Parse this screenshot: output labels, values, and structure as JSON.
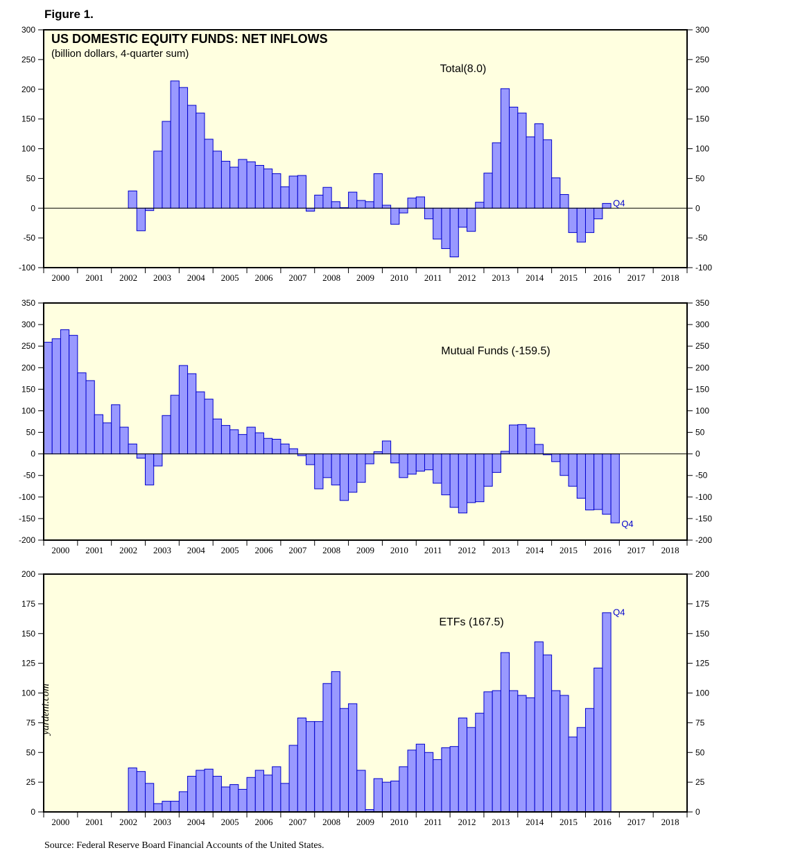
{
  "header": {
    "figure_label": "Figure 1.",
    "watermark": "yardeni.com",
    "source": "Source: Federal Reserve Board Financial Accounts of the United States."
  },
  "colors": {
    "bar_fill": "#9999ff",
    "bar_stroke": "#0000cc",
    "plot_bg": "#ffffe0",
    "label_blue": "#0000cc"
  },
  "chart_data": [
    {
      "type": "bar",
      "title": "US DOMESTIC EQUITY FUNDS: NET INFLOWS",
      "subtitle": "(billion dollars, 4-quarter sum)",
      "series_label": "Total(8.0)",
      "end_label": "Q4",
      "ylim": [
        -100,
        300
      ],
      "yticks": [
        -100,
        -50,
        0,
        50,
        100,
        150,
        200,
        250,
        300
      ],
      "xlim": [
        2000,
        2019
      ],
      "years": [
        "2000",
        "2001",
        "2002",
        "2003",
        "2004",
        "2005",
        "2006",
        "2007",
        "2008",
        "2009",
        "2010",
        "2011",
        "2012",
        "2013",
        "2014",
        "2015",
        "2016",
        "2017",
        "2018"
      ],
      "first_quarter": [
        2002,
        3
      ],
      "values": [
        29,
        -38,
        -4,
        96,
        146,
        214,
        203,
        173,
        160,
        116,
        96,
        79,
        69,
        82,
        78,
        72,
        66,
        58,
        36,
        54,
        55,
        -5,
        22,
        35,
        11,
        1,
        27,
        13,
        11,
        58,
        5,
        -27,
        -8,
        17,
        19,
        -18,
        -52,
        -68,
        -82,
        -32,
        -39,
        10,
        59,
        110,
        201,
        170,
        160,
        120,
        142,
        115,
        51,
        23,
        -41,
        -57,
        -41,
        -18,
        8
      ],
      "grid": false,
      "legend": "none"
    },
    {
      "type": "bar",
      "series_label": "Mutual Funds (-159.5)",
      "end_label": "Q4",
      "ylim": [
        -200,
        350
      ],
      "yticks": [
        -200,
        -150,
        -100,
        -50,
        0,
        50,
        100,
        150,
        200,
        250,
        300,
        350
      ],
      "xlim": [
        2000,
        2019
      ],
      "years": [
        "2000",
        "2001",
        "2002",
        "2003",
        "2004",
        "2005",
        "2006",
        "2007",
        "2008",
        "2009",
        "2010",
        "2011",
        "2012",
        "2013",
        "2014",
        "2015",
        "2016",
        "2017",
        "2018"
      ],
      "first_quarter": [
        2000,
        1
      ],
      "values": [
        259,
        267,
        288,
        275,
        188,
        170,
        91,
        72,
        114,
        62,
        23,
        -10,
        -72,
        -28,
        89,
        136,
        205,
        186,
        144,
        127,
        81,
        66,
        56,
        45,
        62,
        49,
        36,
        34,
        23,
        12,
        -4,
        -25,
        -81,
        -55,
        -72,
        -108,
        -89,
        -66,
        -23,
        5,
        30,
        -21,
        -55,
        -47,
        -40,
        -37,
        -68,
        -95,
        -124,
        -137,
        -113,
        -111,
        -75,
        -43,
        6,
        67,
        68,
        60,
        22,
        -2,
        -18,
        -50,
        -75,
        -103,
        -130,
        -129,
        -140,
        -160
      ],
      "grid": false,
      "legend": "none"
    },
    {
      "type": "bar",
      "series_label": "ETFs (167.5)",
      "end_label": "Q4",
      "ylim": [
        0,
        200
      ],
      "yticks": [
        0,
        25,
        50,
        75,
        100,
        125,
        150,
        175,
        200
      ],
      "xlim": [
        2000,
        2019
      ],
      "years": [
        "2000",
        "2001",
        "2002",
        "2003",
        "2004",
        "2005",
        "2006",
        "2007",
        "2008",
        "2009",
        "2010",
        "2011",
        "2012",
        "2013",
        "2014",
        "2015",
        "2016",
        "2017",
        "2018"
      ],
      "first_quarter": [
        2002,
        3
      ],
      "values": [
        37,
        34,
        24,
        7,
        9,
        9,
        17,
        30,
        35,
        36,
        30,
        21,
        23,
        19,
        29,
        35,
        31,
        38,
        24,
        56,
        79,
        76,
        76,
        108,
        118,
        87,
        91,
        35,
        2,
        28,
        25,
        26,
        38,
        52,
        57,
        50,
        44,
        54,
        55,
        79,
        71,
        83,
        101,
        102,
        134,
        102,
        98,
        96,
        143,
        132,
        102,
        98,
        63,
        71,
        87,
        121,
        167.5
      ],
      "grid": false,
      "legend": "none"
    }
  ]
}
